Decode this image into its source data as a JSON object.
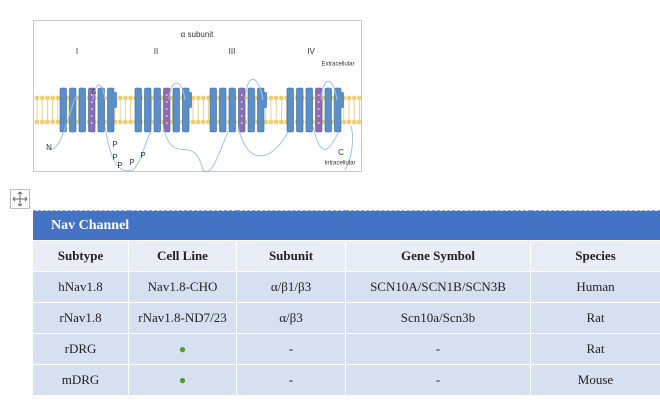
{
  "figure": {
    "title": "α subunit",
    "domains": [
      "I",
      "II",
      "III",
      "IV"
    ],
    "extracellular": "Extracellular",
    "intracellular": "Intracellular",
    "n_terminus": "N",
    "c_terminus": "C",
    "s_label": "S",
    "p_labels": [
      "P",
      "P",
      "P",
      "P",
      "P"
    ]
  },
  "table": {
    "title": "Nav Channel",
    "columns": [
      "Subtype",
      "Cell Line",
      "Subunit",
      "Gene Symbol",
      "Species"
    ],
    "rows": [
      [
        "hNav1.8",
        "Nav1.8-CHO",
        "α/β1/β3",
        "SCN10A/SCN1B/SCN3B",
        "Human"
      ],
      [
        "rNav1.8",
        "rNav1.8-ND7/23",
        "α/β3",
        "Scn10a/Scn3b",
        "Rat"
      ],
      [
        "rDRG",
        "●",
        "-",
        "-",
        "Rat"
      ],
      [
        "mDRG",
        "●",
        "-",
        "-",
        "Mouse"
      ]
    ]
  }
}
